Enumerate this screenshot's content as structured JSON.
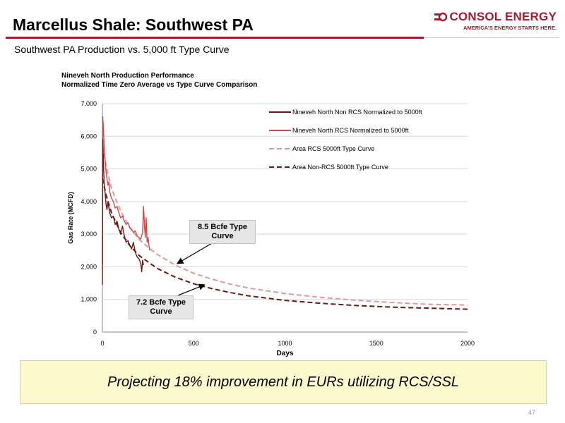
{
  "slide": {
    "title": "Marcellus Shale: Southwest PA",
    "subtitle": "Southwest PA Production vs. 5,000 ft Type Curve",
    "logo_text": "CONSOL ENERGY",
    "logo_tagline": "AMERICA'S ENERGY STARTS HERE.",
    "banner": "Projecting 18% improvement in EURs utilizing RCS/SSL",
    "page_number": "47",
    "colors": {
      "accent": "#a6192e",
      "banner_bg": "#fbf9cd"
    }
  },
  "chart_data": {
    "type": "line",
    "title": [
      "Nineveh North Production Performance",
      "Normalized Time Zero Average vs Type Curve Comparison"
    ],
    "xlabel": "Days",
    "ylabel": "Gas Rate (MCFD)",
    "xlim": [
      0,
      2000
    ],
    "ylim": [
      0,
      7000
    ],
    "xticks": [
      0,
      500,
      1000,
      1500,
      2000
    ],
    "yticks": [
      0,
      1000,
      2000,
      3000,
      4000,
      5000,
      6000,
      7000
    ],
    "xtick_labels": [
      "0",
      "500",
      "1000",
      "1500",
      "2000"
    ],
    "ytick_labels": [
      "0",
      "1,000",
      "2,000",
      "3,000",
      "4,000",
      "5,000",
      "6,000",
      "7,000"
    ],
    "grid": "horizontal",
    "legend_position": "top-right",
    "series": [
      {
        "name": "Nineveh North Non RCS Normalized to 5000ft",
        "style": "solid",
        "color": "#6e1515",
        "x": [
          0,
          2,
          4,
          7,
          10,
          15,
          20,
          25,
          30,
          40,
          50,
          60,
          70,
          80,
          90,
          100,
          110,
          120,
          130,
          140,
          150,
          160,
          170,
          180,
          190,
          200,
          210,
          215,
          220,
          225
        ],
        "y": [
          1450,
          5900,
          5600,
          5000,
          4500,
          4250,
          3900,
          3750,
          4000,
          3650,
          3500,
          3550,
          3300,
          3400,
          3150,
          3000,
          3250,
          2950,
          2750,
          2800,
          2650,
          2550,
          2750,
          2450,
          2300,
          2250,
          2100,
          1850,
          2200,
          2050
        ]
      },
      {
        "name": "Nineveh North RCS Normalized to 5000ft",
        "style": "solid",
        "color": "#c94a4a",
        "x": [
          0,
          2,
          5,
          8,
          12,
          16,
          20,
          25,
          30,
          35,
          40,
          50,
          60,
          70,
          80,
          90,
          100,
          110,
          120,
          130,
          140,
          150,
          160,
          170,
          180,
          190,
          200,
          210,
          220,
          225,
          230,
          235,
          240,
          245,
          250,
          255,
          260
        ],
        "y": [
          2100,
          6600,
          6300,
          5900,
          5500,
          5200,
          4900,
          4700,
          4500,
          4600,
          4300,
          4100,
          4000,
          3800,
          3850,
          3650,
          3500,
          3550,
          3400,
          3300,
          3350,
          3200,
          3150,
          3050,
          3100,
          2950,
          2900,
          2850,
          3050,
          3850,
          3300,
          2900,
          3500,
          2750,
          2900,
          2650,
          2500
        ]
      },
      {
        "name": "Area RCS 5000ft Type Curve",
        "style": "dashed",
        "color": "#dc9a9a",
        "x": [
          0,
          20,
          50,
          100,
          150,
          200,
          250,
          300,
          400,
          500,
          600,
          700,
          800,
          1000,
          1200,
          1400,
          1600,
          1800,
          2000
        ],
        "y": [
          5700,
          5100,
          4400,
          3700,
          3200,
          2850,
          2600,
          2380,
          2050,
          1800,
          1620,
          1470,
          1350,
          1180,
          1060,
          970,
          900,
          850,
          830
        ]
      },
      {
        "name": "Area Non-RCS 5000ft Type Curve",
        "style": "dashed",
        "color": "#6e1515",
        "x": [
          0,
          20,
          50,
          100,
          150,
          200,
          250,
          300,
          400,
          500,
          600,
          700,
          800,
          1000,
          1200,
          1400,
          1600,
          1800,
          2000
        ],
        "y": [
          4700,
          4200,
          3650,
          3050,
          2650,
          2350,
          2150,
          1950,
          1680,
          1480,
          1330,
          1210,
          1110,
          970,
          880,
          810,
          760,
          730,
          700
        ]
      }
    ],
    "annotations": [
      {
        "text": "8.5 Bcfe Type Curve",
        "points_to_x": 410,
        "points_to_y": 2100
      },
      {
        "text": "7.2 Bcfe Type Curve",
        "points_to_x": 560,
        "points_to_y": 1450
      }
    ]
  }
}
